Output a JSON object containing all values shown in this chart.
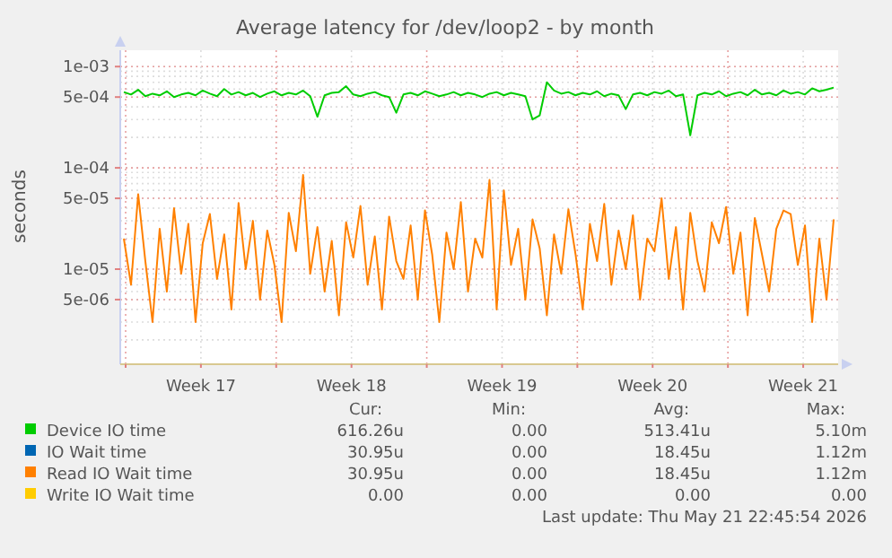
{
  "chart_data": {
    "type": "line",
    "title": "Average latency for /dev/loop2 - by month",
    "ylabel": "seconds",
    "log": true,
    "grid": true,
    "legend": "bottom",
    "xlim": [
      "2026-04-19T18:00",
      "2026-05-23T03:00"
    ],
    "x": [
      "2026-04-19T22:00",
      "2026-04-20T06:00",
      "2026-04-20T14:00",
      "2026-04-20T22:00",
      "2026-04-21T06:00",
      "2026-04-21T14:00",
      "2026-04-21T22:00",
      "2026-04-22T06:00",
      "2026-04-22T14:00",
      "2026-04-22T22:00",
      "2026-04-23T06:00",
      "2026-04-23T14:00",
      "2026-04-23T22:00",
      "2026-04-24T06:00",
      "2026-04-24T14:00",
      "2026-04-24T22:00",
      "2026-04-25T06:00",
      "2026-04-25T14:00",
      "2026-04-25T22:00",
      "2026-04-26T06:00",
      "2026-04-26T14:00",
      "2026-04-26T22:00",
      "2026-04-27T06:00",
      "2026-04-27T14:00",
      "2026-04-27T22:00",
      "2026-04-28T06:00",
      "2026-04-28T14:00",
      "2026-04-28T22:00",
      "2026-04-29T06:00",
      "2026-04-29T14:00",
      "2026-04-29T22:00",
      "2026-04-30T06:00",
      "2026-04-30T14:00",
      "2026-04-30T22:00",
      "2026-05-01T06:00",
      "2026-05-01T14:00",
      "2026-05-01T22:00",
      "2026-05-02T06:00",
      "2026-05-02T14:00",
      "2026-05-02T22:00",
      "2026-05-03T06:00",
      "2026-05-03T14:00",
      "2026-05-03T22:00",
      "2026-05-04T06:00",
      "2026-05-04T14:00",
      "2026-05-04T22:00",
      "2026-05-05T06:00",
      "2026-05-05T14:00",
      "2026-05-05T22:00",
      "2026-05-06T06:00",
      "2026-05-06T14:00",
      "2026-05-06T22:00",
      "2026-05-07T06:00",
      "2026-05-07T14:00",
      "2026-05-07T22:00",
      "2026-05-08T06:00",
      "2026-05-08T14:00",
      "2026-05-08T22:00",
      "2026-05-09T06:00",
      "2026-05-09T14:00",
      "2026-05-09T22:00",
      "2026-05-10T06:00",
      "2026-05-10T14:00",
      "2026-05-10T22:00",
      "2026-05-11T06:00",
      "2026-05-11T14:00",
      "2026-05-11T22:00",
      "2026-05-12T06:00",
      "2026-05-12T14:00",
      "2026-05-12T22:00",
      "2026-05-13T06:00",
      "2026-05-13T14:00",
      "2026-05-13T22:00",
      "2026-05-14T06:00",
      "2026-05-14T14:00",
      "2026-05-14T22:00",
      "2026-05-15T06:00",
      "2026-05-15T14:00",
      "2026-05-15T22:00",
      "2026-05-16T06:00",
      "2026-05-16T14:00",
      "2026-05-16T22:00",
      "2026-05-17T06:00",
      "2026-05-17T14:00",
      "2026-05-17T22:00",
      "2026-05-18T06:00",
      "2026-05-18T14:00",
      "2026-05-18T22:00",
      "2026-05-19T06:00",
      "2026-05-19T14:00",
      "2026-05-19T22:00",
      "2026-05-20T06:00",
      "2026-05-20T14:00",
      "2026-05-20T22:00",
      "2026-05-21T06:00",
      "2026-05-21T14:00",
      "2026-05-21T22:00",
      "2026-05-22T06:00",
      "2026-05-22T14:00",
      "2026-05-22T22:00"
    ],
    "xticks": [
      {
        "value": "2026-04-20T00:00",
        "label": null
      },
      {
        "value": "2026-04-23T12:00",
        "label": "Week 17"
      },
      {
        "value": "2026-04-27T00:00",
        "label": null
      },
      {
        "value": "2026-04-30T12:00",
        "label": "Week 18"
      },
      {
        "value": "2026-05-04T00:00",
        "label": null
      },
      {
        "value": "2026-05-07T12:00",
        "label": "Week 19"
      },
      {
        "value": "2026-05-11T00:00",
        "label": null
      },
      {
        "value": "2026-05-14T12:00",
        "label": "Week 20"
      },
      {
        "value": "2026-05-18T00:00",
        "label": null
      },
      {
        "value": "2026-05-21T12:00",
        "label": "Week 21"
      }
    ],
    "ylim": [
      1.15e-06,
      0.00145
    ],
    "yticks": [
      {
        "value": 5e-06,
        "label": "5e-06"
      },
      {
        "value": 1e-05,
        "label": "1e-05"
      },
      {
        "value": 5e-05,
        "label": "5e-05"
      },
      {
        "value": 0.0001,
        "label": "1e-04"
      },
      {
        "value": 0.0005,
        "label": "5e-04"
      },
      {
        "value": 0.001,
        "label": "1e-03"
      }
    ],
    "series": [
      {
        "name": "Device IO time",
        "color": "#00cc00",
        "values": [
          0.00056,
          0.00053,
          0.00059,
          0.00051,
          0.00054,
          0.00052,
          0.00057,
          0.0005,
          0.00053,
          0.00055,
          0.00052,
          0.00058,
          0.00054,
          0.00051,
          0.0006,
          0.00053,
          0.00056,
          0.00052,
          0.00055,
          0.0005,
          0.00054,
          0.00057,
          0.00052,
          0.00055,
          0.00053,
          0.00058,
          0.00051,
          0.00032,
          0.00052,
          0.00055,
          0.00056,
          0.00064,
          0.00053,
          0.00051,
          0.00054,
          0.00056,
          0.00052,
          0.0005,
          0.00035,
          0.00053,
          0.00055,
          0.00052,
          0.00057,
          0.00054,
          0.00051,
          0.00053,
          0.00056,
          0.00052,
          0.00055,
          0.00053,
          0.0005,
          0.00054,
          0.00056,
          0.00052,
          0.00055,
          0.00053,
          0.00051,
          0.0003,
          0.00033,
          0.0007,
          0.00058,
          0.00054,
          0.00056,
          0.00052,
          0.00055,
          0.00053,
          0.00057,
          0.00051,
          0.00054,
          0.00052,
          0.00038,
          0.00053,
          0.00055,
          0.00052,
          0.00056,
          0.00054,
          0.00058,
          0.00051,
          0.00053,
          0.00021,
          0.00052,
          0.00055,
          0.00053,
          0.00057,
          0.00051,
          0.00054,
          0.00056,
          0.00052,
          0.00059,
          0.00053,
          0.00055,
          0.00052,
          0.00058,
          0.00054,
          0.00056,
          0.00053,
          0.00061,
          0.00057,
          0.00059,
          0.00062
        ]
      },
      {
        "name": "IO Wait time",
        "color": "#0066b3",
        "values": [
          null,
          null,
          null,
          null,
          null,
          null,
          null,
          null,
          null,
          null,
          null,
          null,
          null,
          null,
          null,
          null,
          null,
          null,
          null,
          null,
          null,
          null,
          null,
          null,
          null,
          null,
          null,
          null,
          null,
          null,
          null,
          null,
          null,
          null,
          null,
          null,
          null,
          null,
          null,
          null,
          null,
          null,
          null,
          null,
          null,
          null,
          null,
          null,
          null,
          null,
          null,
          null,
          null,
          null,
          null,
          null,
          null,
          null,
          null,
          null,
          null,
          null,
          null,
          null,
          null,
          null,
          null,
          null,
          null,
          null,
          null,
          null,
          null,
          null,
          null,
          null,
          null,
          null,
          null,
          null,
          null,
          null,
          null,
          null,
          null,
          null,
          null,
          null,
          null,
          null,
          null,
          null,
          null,
          null,
          null,
          null,
          null,
          null,
          null,
          null
        ]
      },
      {
        "name": "Read IO Wait time",
        "color": "#ff8000",
        "values": [
          2e-05,
          7e-06,
          5.5e-05,
          1.2e-05,
          3e-06,
          2.5e-05,
          6e-06,
          4e-05,
          9e-06,
          2.8e-05,
          3e-06,
          1.8e-05,
          3.5e-05,
          8e-06,
          2.2e-05,
          4e-06,
          4.5e-05,
          1e-05,
          3e-05,
          5e-06,
          2.4e-05,
          1.1e-05,
          3e-06,
          3.6e-05,
          1.5e-05,
          8.5e-05,
          9e-06,
          2.6e-05,
          6e-06,
          1.9e-05,
          3.5e-06,
          2.9e-05,
          1.3e-05,
          4.2e-05,
          7e-06,
          2.1e-05,
          4e-06,
          3.3e-05,
          1.2e-05,
          8e-06,
          2.7e-05,
          5e-06,
          3.8e-05,
          1.4e-05,
          3e-06,
          2.3e-05,
          1e-05,
          4.6e-05,
          6e-06,
          2e-05,
          1.3e-05,
          7.6e-05,
          4e-06,
          6e-05,
          1.1e-05,
          2.5e-05,
          5e-06,
          3.1e-05,
          1.6e-05,
          3.5e-06,
          2.2e-05,
          9e-06,
          3.9e-05,
          1.4e-05,
          4e-06,
          2.8e-05,
          1.2e-05,
          4.4e-05,
          7e-06,
          2.4e-05,
          1e-05,
          3.4e-05,
          5e-06,
          2e-05,
          1.5e-05,
          5e-05,
          8e-06,
          2.6e-05,
          4e-06,
          3.6e-05,
          1.2e-05,
          6e-06,
          2.9e-05,
          1.8e-05,
          4.1e-05,
          9e-06,
          2.3e-05,
          3.5e-06,
          3.2e-05,
          1.4e-05,
          6e-06,
          2.5e-05,
          3.8e-05,
          3.5e-05,
          1.1e-05,
          2.7e-05,
          3e-06,
          2e-05,
          5e-06,
          3.1e-05
        ]
      },
      {
        "name": "Write IO Wait time",
        "color": "#ffcc00",
        "values": [
          null,
          null,
          null,
          null,
          null,
          null,
          null,
          null,
          null,
          null,
          null,
          null,
          null,
          null,
          null,
          null,
          null,
          null,
          null,
          null,
          null,
          null,
          null,
          null,
          null,
          null,
          null,
          null,
          null,
          null,
          null,
          null,
          null,
          null,
          null,
          null,
          null,
          null,
          null,
          null,
          null,
          null,
          null,
          null,
          null,
          null,
          null,
          null,
          null,
          null,
          null,
          null,
          null,
          null,
          null,
          null,
          null,
          null,
          null,
          null,
          null,
          null,
          null,
          null,
          null,
          null,
          null,
          null,
          null,
          null,
          null,
          null,
          null,
          null,
          null,
          null,
          null,
          null,
          null,
          null,
          null,
          null,
          null,
          null,
          null,
          null,
          null,
          null,
          null,
          null,
          null,
          null,
          null,
          null,
          null,
          null,
          null,
          null,
          null,
          null
        ]
      }
    ],
    "annotations": [
      "Cur:",
      "Min:",
      "Avg:",
      "Max:",
      "616.26u",
      "0.00",
      "513.41u",
      "5.10m",
      "30.95u",
      "0.00",
      "18.45u",
      "1.12m",
      "30.95u",
      "0.00",
      "18.45u",
      "1.12m",
      "0.00",
      "0.00",
      "0.00",
      "0.00",
      "Last update: Thu May 21 22:45:54 2026"
    ]
  }
}
